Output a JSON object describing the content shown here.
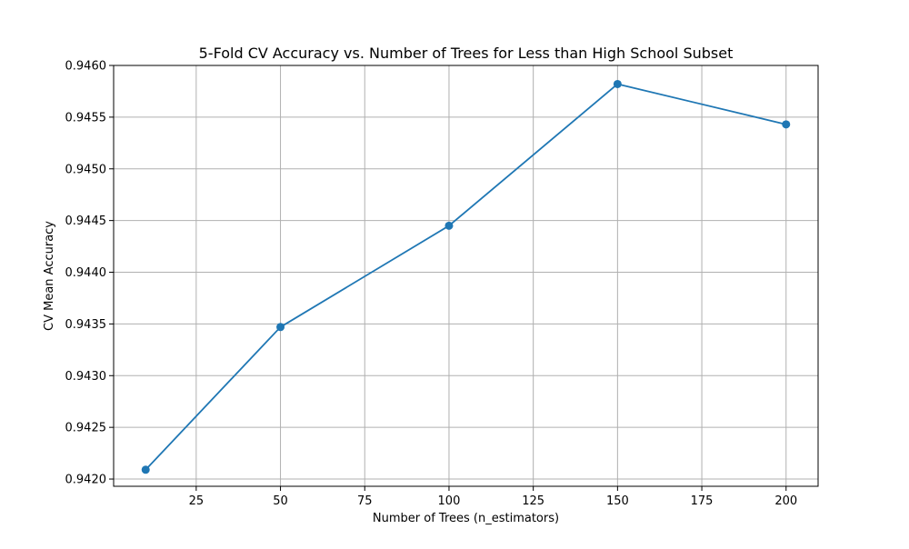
{
  "chart_data": {
    "type": "line",
    "title": "5-Fold CV Accuracy vs. Number of Trees for Less than High School Subset",
    "xlabel": "Number of Trees (n_estimators)",
    "ylabel": "CV Mean Accuracy",
    "x": [
      10,
      50,
      100,
      150,
      200
    ],
    "series": [
      {
        "values": [
          0.94209,
          0.94347,
          0.94445,
          0.94582,
          0.94543
        ]
      }
    ],
    "xlim": [
      0.5,
      209.5
    ],
    "ylim": [
      0.94193,
      0.946
    ],
    "xticks": [
      25,
      50,
      75,
      100,
      125,
      150,
      175,
      200
    ],
    "xtick_labels": [
      "25",
      "50",
      "75",
      "100",
      "125",
      "150",
      "175",
      "200"
    ],
    "yticks": [
      0.942,
      0.9425,
      0.943,
      0.9435,
      0.944,
      0.9445,
      0.945,
      0.9455,
      0.946
    ],
    "ytick_labels": [
      "0.9420",
      "0.9425",
      "0.9430",
      "0.9435",
      "0.9440",
      "0.9445",
      "0.9450",
      "0.9455",
      "0.9460"
    ],
    "grid": true,
    "marker": "circle",
    "line_color": "#1f77b4",
    "grid_color": "#b0b0b0"
  }
}
